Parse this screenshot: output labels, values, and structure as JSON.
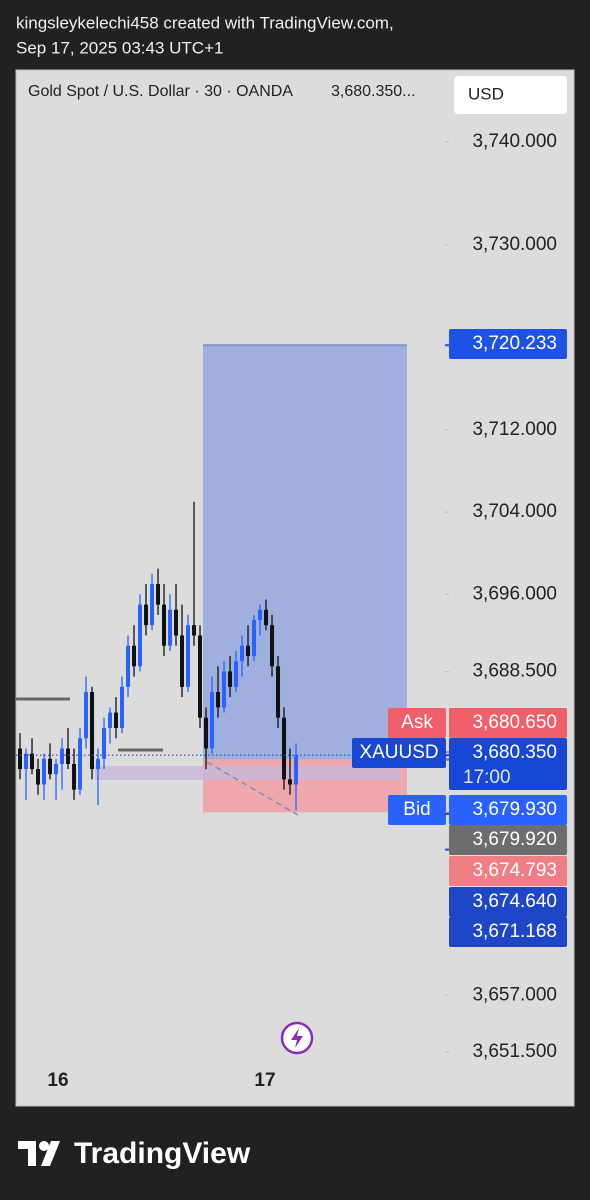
{
  "header": {
    "author_line": "kingsleykelechi458 created with TradingView.com,",
    "date_line": "Sep 17, 2025 03:43 UTC+1"
  },
  "currency_button": "USD",
  "footer": {
    "brand": "TradingView"
  },
  "chart_data": {
    "type": "candlestick",
    "title": "Gold Spot / U.S. Dollar · 30 · OANDA",
    "price_text": "3,680.350...",
    "x": [
      0,
      1,
      2,
      3,
      4,
      5,
      6,
      7,
      8,
      9,
      10,
      11,
      12,
      13,
      14,
      15,
      16,
      17,
      18,
      19,
      20,
      21,
      22,
      23,
      24,
      25,
      26,
      27,
      28,
      29,
      30,
      31,
      32,
      33,
      34,
      35,
      36,
      37,
      38,
      39,
      40,
      41,
      42,
      43,
      44,
      45,
      46
    ],
    "open": [
      3681,
      3679,
      3680.5,
      3679,
      3677.5,
      3680,
      3678.5,
      3679.5,
      3681,
      3679.5,
      3677,
      3682,
      3686.5,
      3679,
      3680,
      3683,
      3684.5,
      3683,
      3687,
      3691,
      3689,
      3695,
      3693,
      3697,
      3695,
      3691,
      3694.5,
      3692,
      3687,
      3693,
      3692,
      3684,
      3681,
      3686.5,
      3685,
      3688.5,
      3687,
      3689.5,
      3691,
      3690,
      3693.5,
      3694.5,
      3693,
      3689,
      3684,
      3678,
      3677.5
    ],
    "high": [
      3682.5,
      3681,
      3682,
      3680,
      3680.5,
      3681.5,
      3680,
      3682,
      3683,
      3681,
      3683,
      3688,
      3687,
      3681,
      3684,
      3685,
      3686,
      3688,
      3692,
      3693,
      3696,
      3697,
      3698,
      3698.5,
      3697,
      3696,
      3697,
      3695,
      3694,
      3705,
      3693,
      3685,
      3688,
      3689,
      3689.5,
      3690,
      3690.5,
      3692,
      3693,
      3694,
      3695,
      3695.5,
      3694,
      3690,
      3685,
      3681,
      3681.5
    ],
    "low": [
      3678,
      3676,
      3678.5,
      3676.5,
      3676,
      3678,
      3676,
      3677,
      3679,
      3676,
      3676.5,
      3681,
      3678,
      3675.5,
      3679,
      3681.5,
      3682,
      3682.5,
      3686,
      3688,
      3688.5,
      3692,
      3692.5,
      3694,
      3690,
      3690.5,
      3691,
      3686,
      3686.5,
      3691,
      3683,
      3679,
      3680.5,
      3684,
      3684.5,
      3686,
      3686.5,
      3688,
      3689,
      3689.5,
      3692,
      3692.5,
      3688,
      3683,
      3677,
      3676.5,
      3675
    ],
    "close": [
      3679,
      3680.5,
      3679,
      3677.5,
      3680,
      3678.5,
      3679.5,
      3681,
      3679.5,
      3677,
      3682,
      3686.5,
      3679,
      3680,
      3683,
      3684.5,
      3683,
      3687,
      3691,
      3689,
      3695,
      3693,
      3697,
      3695,
      3691,
      3694.5,
      3692,
      3687,
      3693,
      3692,
      3684,
      3681,
      3686.5,
      3685,
      3688.5,
      3687,
      3689.5,
      3691,
      3690,
      3693.5,
      3694.5,
      3693,
      3689,
      3684,
      3678,
      3677.5,
      3680.35
    ],
    "up_color": "#2962ff",
    "down_color": "#111111",
    "xlim": [
      -0.67,
      70.83
    ],
    "xticks": [
      {
        "value": 6.33,
        "label": "16"
      },
      {
        "value": 40.83,
        "label": "17"
      }
    ],
    "ylim": [
      3650.7,
      3746.52
    ],
    "yticks": [
      {
        "value": 3740,
        "label": "3,740.000"
      },
      {
        "value": 3730,
        "label": "3,730.000"
      },
      {
        "value": 3712,
        "label": "3,712.000"
      },
      {
        "value": 3704,
        "label": "3,704.000"
      },
      {
        "value": 3696,
        "label": "3,696.000"
      },
      {
        "value": 3688.5,
        "label": "3,688.500"
      },
      {
        "value": 3657,
        "label": "3,657.000"
      },
      {
        "value": 3651.5,
        "label": "3,651.500"
      }
    ],
    "position": {
      "target": 3720.233,
      "entry": 3679.92,
      "stop": 3674.793
    },
    "price_tags": [
      {
        "price": {
          "value": 3720.233,
          "label": "3,720.233"
        },
        "color": "#1e53e5"
      },
      {
        "name": "Ask",
        "price": {
          "value": 3680.65,
          "label": "3,680.650"
        },
        "color": "#f0606b"
      },
      {
        "name": "XAUUSD",
        "price": {
          "value": 3680.35,
          "label": "3,680.350"
        },
        "time": "17:00",
        "color": "#1847d4"
      },
      {
        "name": "Bid",
        "price": {
          "value": 3679.93,
          "label": "3,679.930"
        },
        "color": "#2962ff"
      },
      {
        "price": {
          "value": 3679.92,
          "label": "3,679.920"
        },
        "color": "#6d6d6d"
      },
      {
        "price": {
          "value": 3674.793,
          "label": "3,674.793"
        },
        "color": "#f07f85"
      },
      {
        "price": {
          "value": 3674.64,
          "label": "3,674.640"
        },
        "color": "#1e47c8"
      },
      {
        "price": {
          "value": 3671.168,
          "label": "3,671.168"
        },
        "color": "#1e47c8"
      }
    ]
  }
}
